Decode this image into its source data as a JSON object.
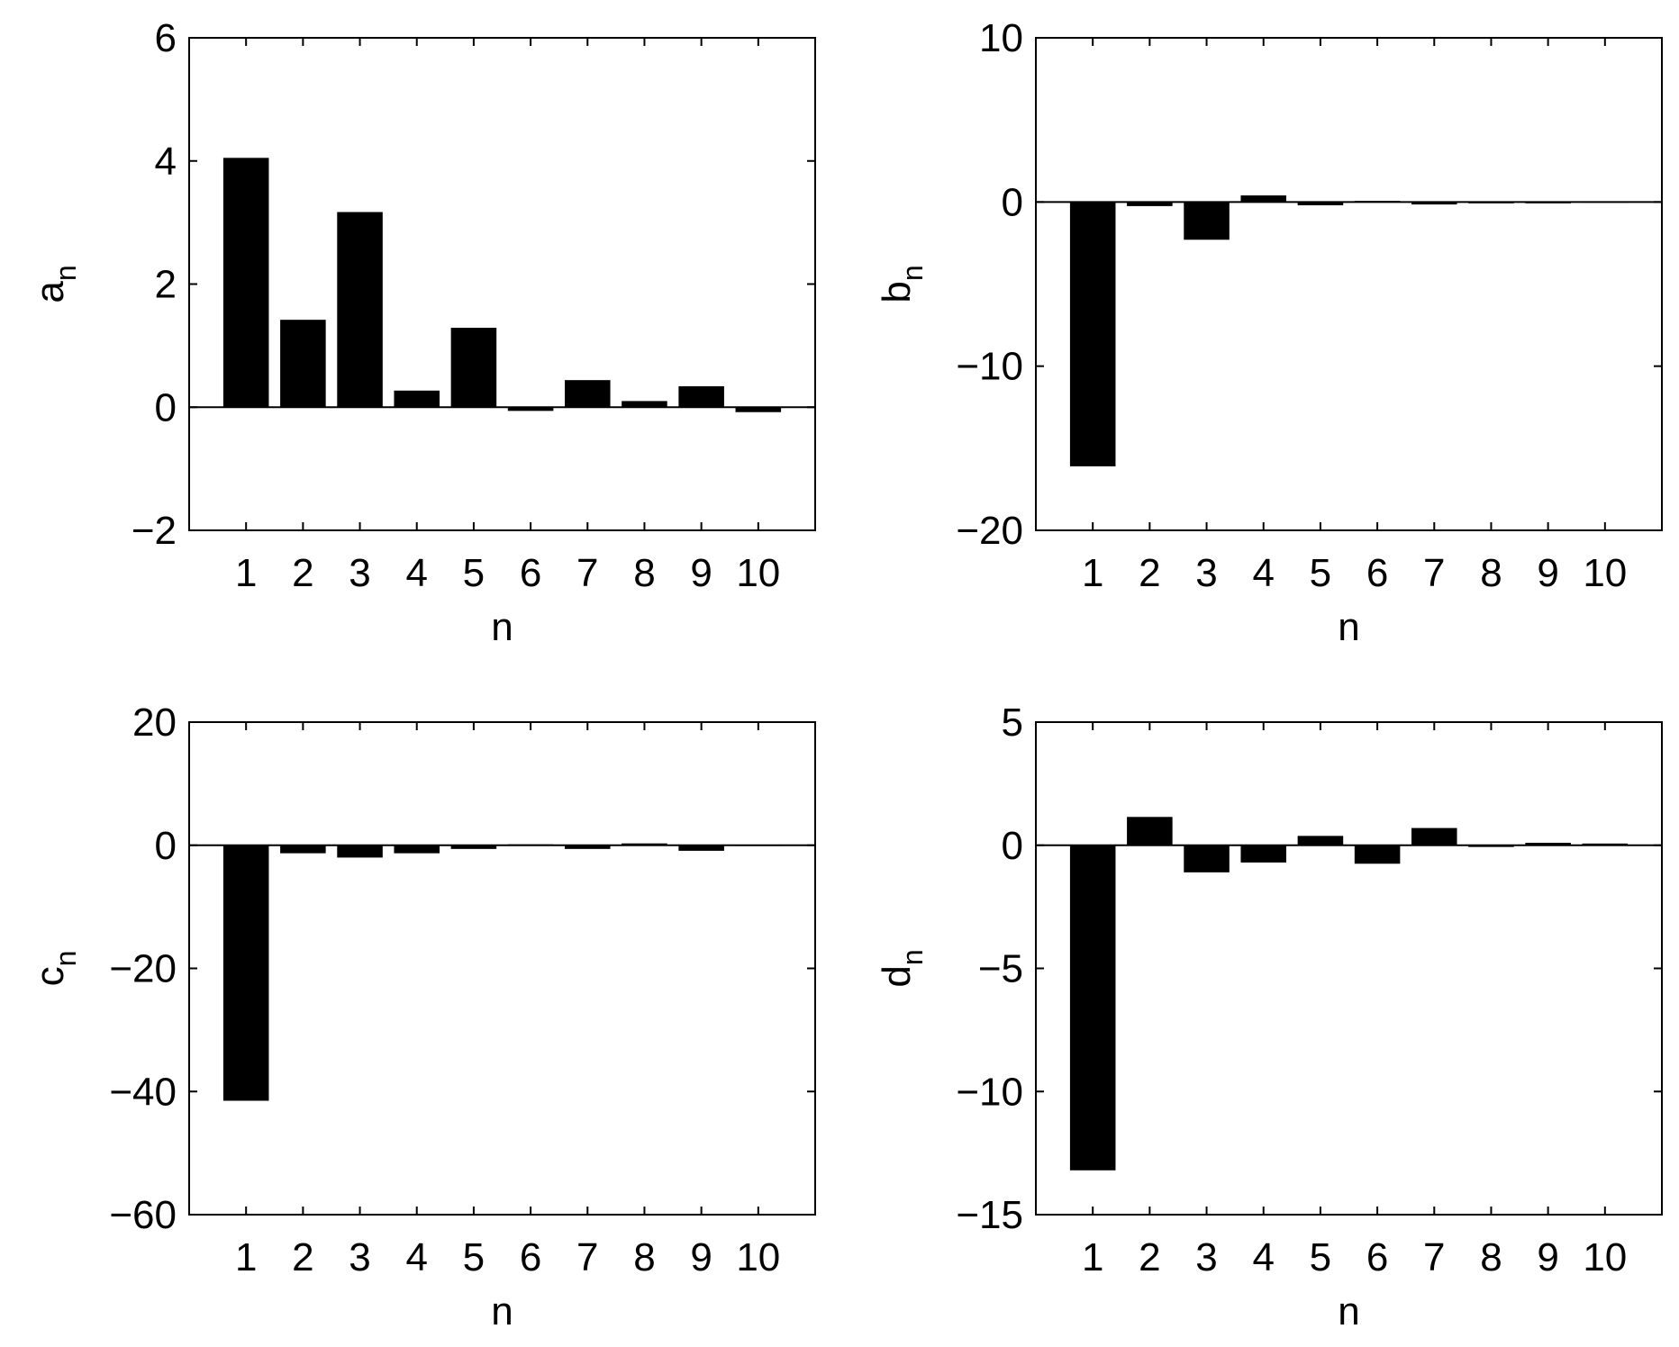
{
  "chart_data": [
    {
      "type": "bar",
      "xlabel": "n",
      "ylabel": "a",
      "ylabel_sub": "n",
      "categories": [
        "1",
        "2",
        "3",
        "4",
        "5",
        "6",
        "7",
        "8",
        "9",
        "10"
      ],
      "values": [
        4.05,
        1.42,
        3.17,
        0.27,
        1.29,
        -0.06,
        0.44,
        0.1,
        0.34,
        -0.08
      ],
      "ylim": [
        -2,
        6
      ],
      "yticks": [
        -2,
        0,
        2,
        4,
        6
      ],
      "ytick_labels": [
        "−2",
        "0",
        "2",
        "4",
        "6"
      ],
      "bar_color": "#000000",
      "grid": false
    },
    {
      "type": "bar",
      "xlabel": "n",
      "ylabel": "b",
      "ylabel_sub": "n",
      "categories": [
        "1",
        "2",
        "3",
        "4",
        "5",
        "6",
        "7",
        "8",
        "9",
        "10"
      ],
      "values": [
        -16.1,
        -0.25,
        -2.3,
        0.4,
        -0.2,
        0.07,
        -0.15,
        -0.05,
        -0.07,
        0.04
      ],
      "ylim": [
        -20,
        10
      ],
      "yticks": [
        -20,
        -10,
        0,
        10
      ],
      "ytick_labels": [
        "−20",
        "−10",
        "0",
        "10"
      ],
      "bar_color": "#000000",
      "grid": false
    },
    {
      "type": "bar",
      "xlabel": "n",
      "ylabel": "c",
      "ylabel_sub": "n",
      "categories": [
        "1",
        "2",
        "3",
        "4",
        "5",
        "6",
        "7",
        "8",
        "9",
        "10"
      ],
      "values": [
        -41.5,
        -1.3,
        -2,
        -1.3,
        -0.6,
        0.15,
        -0.6,
        0.3,
        -0.9,
        0.1
      ],
      "ylim": [
        -60,
        20
      ],
      "yticks": [
        -60,
        -40,
        -20,
        0,
        20
      ],
      "ytick_labels": [
        "−60",
        "−40",
        "−20",
        "0",
        "20"
      ],
      "bar_color": "#000000",
      "grid": false
    },
    {
      "type": "bar",
      "xlabel": "n",
      "ylabel": "d",
      "ylabel_sub": "n",
      "categories": [
        "1",
        "2",
        "3",
        "4",
        "5",
        "6",
        "7",
        "8",
        "9",
        "10"
      ],
      "values": [
        -13.2,
        1.15,
        -1.1,
        -0.7,
        0.38,
        -0.75,
        0.7,
        -0.07,
        0.1,
        0.07
      ],
      "ylim": [
        -15,
        5
      ],
      "yticks": [
        -15,
        -10,
        -5,
        0,
        5
      ],
      "ytick_labels": [
        "−15",
        "−10",
        "−5",
        "0",
        "5"
      ],
      "bar_color": "#000000",
      "grid": false
    }
  ]
}
